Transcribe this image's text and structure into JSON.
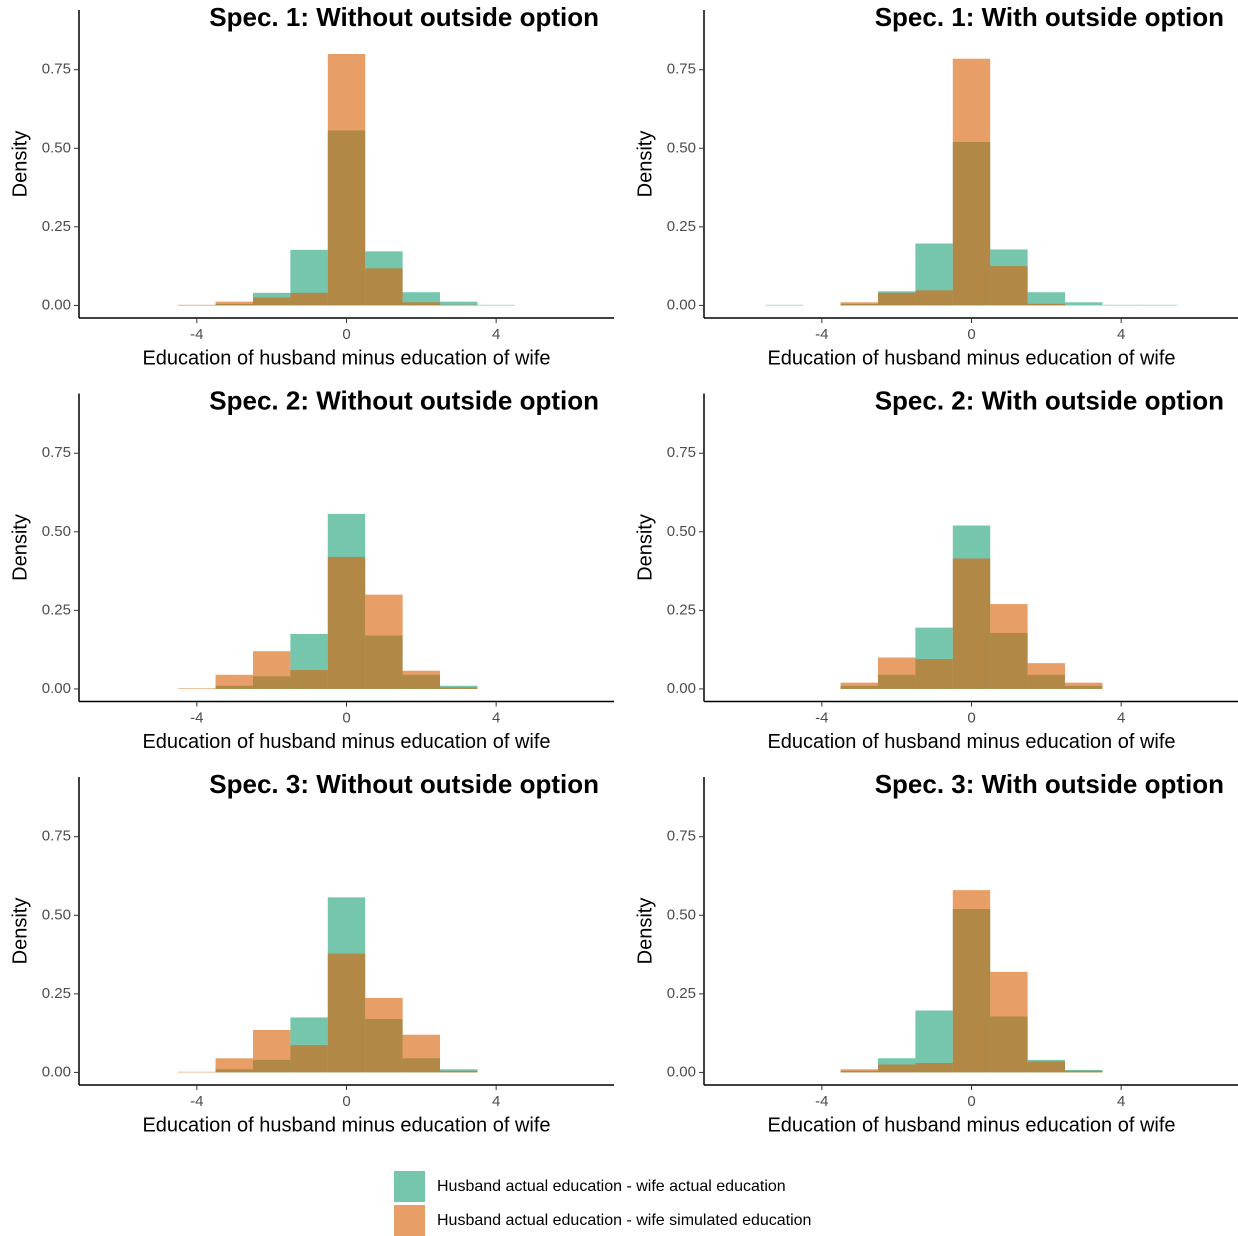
{
  "chart_data": [
    {
      "type": "histogram",
      "title": "Spec. 1: Without outside option",
      "x_label": "Education of husband minus education of wife",
      "y_label": "Density",
      "bins": [
        -4.5,
        -3.5,
        -2.5,
        -1.5,
        -0.5,
        0.5,
        1.5,
        2.5,
        3.5,
        4.5
      ],
      "series": [
        {
          "name": "Husband actual education - wife actual education",
          "color": "#1b9e77",
          "values": [
            0.001,
            0.005,
            0.04,
            0.177,
            0.557,
            0.172,
            0.042,
            0.012,
            0.002
          ]
        },
        {
          "name": "Husband actual education - wife simulated education",
          "color": "#d95f02",
          "values": [
            0.002,
            0.012,
            0.025,
            0.04,
            0.8,
            0.118,
            0.01,
            0.002,
            0
          ]
        }
      ],
      "opacity": 0.6,
      "xlim": [
        -7.15,
        7.15
      ],
      "ylim": [
        -0.04,
        0.94
      ],
      "xticks": [
        -4,
        0,
        4
      ],
      "yticks": [
        {
          "value": 0,
          "label": "0.00"
        },
        0.25,
        {
          "value": 0.5,
          "label": "0.50"
        },
        0.75
      ]
    },
    {
      "type": "histogram",
      "title": "Spec. 1: With outside option",
      "x_label": "Education of husband minus education of wife",
      "y_label": "Density",
      "bins": [
        -5.5,
        -4.5,
        -3.5,
        -2.5,
        -1.5,
        -0.5,
        0.5,
        1.5,
        2.5,
        3.5,
        4.5,
        5.5
      ],
      "series": [
        {
          "name": "Husband actual education - wife actual education",
          "color": "#1b9e77",
          "values": [
            0.002,
            0,
            0.005,
            0.045,
            0.197,
            0.52,
            0.178,
            0.042,
            0.01,
            0.002,
            0.002
          ]
        },
        {
          "name": "Husband actual education - wife simulated education",
          "color": "#d95f02",
          "values": [
            0,
            0,
            0.01,
            0.04,
            0.048,
            0.785,
            0.125,
            0.005,
            0,
            0,
            0
          ]
        }
      ],
      "opacity": 0.6,
      "xlim": [
        -7.15,
        7.15
      ],
      "ylim": [
        -0.04,
        0.94
      ],
      "xticks": [
        -4,
        0,
        4
      ],
      "yticks": [
        {
          "value": 0,
          "label": "0.00"
        },
        0.25,
        {
          "value": 0.5,
          "label": "0.50"
        },
        0.75
      ]
    },
    {
      "type": "histogram",
      "title": "Spec. 2: Without outside option",
      "x_label": "Education of husband minus education of wife",
      "y_label": "Density",
      "bins": [
        -4.5,
        -3.5,
        -2.5,
        -1.5,
        -0.5,
        0.5,
        1.5,
        2.5,
        3.5
      ],
      "series": [
        {
          "name": "Husband actual education - wife actual education",
          "color": "#1b9e77",
          "values": [
            0,
            0.01,
            0.04,
            0.175,
            0.557,
            0.17,
            0.045,
            0.01
          ]
        },
        {
          "name": "Husband actual education - wife simulated education",
          "color": "#d95f02",
          "values": [
            0.002,
            0.045,
            0.12,
            0.06,
            0.42,
            0.3,
            0.058,
            0.005
          ]
        }
      ],
      "opacity": 0.6,
      "xlim": [
        -7.15,
        7.15
      ],
      "ylim": [
        -0.04,
        0.94
      ],
      "xticks": [
        -4,
        0,
        4
      ],
      "yticks": [
        {
          "value": 0,
          "label": "0.00"
        },
        0.25,
        {
          "value": 0.5,
          "label": "0.50"
        },
        0.75
      ]
    },
    {
      "type": "histogram",
      "title": "Spec. 2: With outside option",
      "x_label": "Education of husband minus education of wife",
      "y_label": "Density",
      "bins": [
        -3.5,
        -2.5,
        -1.5,
        -0.5,
        0.5,
        1.5,
        2.5,
        3.5
      ],
      "series": [
        {
          "name": "Husband actual education - wife actual education",
          "color": "#1b9e77",
          "values": [
            0.01,
            0.045,
            0.195,
            0.52,
            0.178,
            0.045,
            0.01
          ]
        },
        {
          "name": "Husband actual education - wife simulated education",
          "color": "#d95f02",
          "values": [
            0.02,
            0.1,
            0.095,
            0.415,
            0.27,
            0.082,
            0.02
          ]
        }
      ],
      "opacity": 0.6,
      "xlim": [
        -7.15,
        7.15
      ],
      "ylim": [
        -0.04,
        0.94
      ],
      "xticks": [
        -4,
        0,
        4
      ],
      "yticks": [
        {
          "value": 0,
          "label": "0.00"
        },
        0.25,
        {
          "value": 0.5,
          "label": "0.50"
        },
        0.75
      ]
    },
    {
      "type": "histogram",
      "title": "Spec. 3: Without outside option",
      "x_label": "Education of husband minus education of wife",
      "y_label": "Density",
      "bins": [
        -4.5,
        -3.5,
        -2.5,
        -1.5,
        -0.5,
        0.5,
        1.5,
        2.5,
        3.5
      ],
      "series": [
        {
          "name": "Husband actual education - wife actual education",
          "color": "#1b9e77",
          "values": [
            0,
            0.01,
            0.04,
            0.175,
            0.557,
            0.17,
            0.045,
            0.01
          ]
        },
        {
          "name": "Husband actual education - wife simulated education",
          "color": "#d95f02",
          "values": [
            0.002,
            0.045,
            0.135,
            0.087,
            0.378,
            0.237,
            0.12,
            0.005
          ]
        }
      ],
      "opacity": 0.6,
      "xlim": [
        -7.15,
        7.15
      ],
      "ylim": [
        -0.04,
        0.94
      ],
      "xticks": [
        -4,
        0,
        4
      ],
      "yticks": [
        {
          "value": 0,
          "label": "0.00"
        },
        0.25,
        {
          "value": 0.5,
          "label": "0.50"
        },
        0.75
      ]
    },
    {
      "type": "histogram",
      "title": "Spec. 3: With outside option",
      "x_label": "Education of husband minus education of wife",
      "y_label": "Density",
      "bins": [
        -3.5,
        -2.5,
        -1.5,
        -0.5,
        0.5,
        1.5,
        2.5,
        3.5
      ],
      "series": [
        {
          "name": "Husband actual education - wife actual education",
          "color": "#1b9e77",
          "values": [
            0.005,
            0.045,
            0.197,
            0.52,
            0.178,
            0.04,
            0.008
          ]
        },
        {
          "name": "Husband actual education - wife simulated education",
          "color": "#d95f02",
          "values": [
            0.01,
            0.025,
            0.03,
            0.58,
            0.32,
            0.035,
            0.005
          ]
        }
      ],
      "opacity": 0.6,
      "xlim": [
        -7.15,
        7.15
      ],
      "ylim": [
        -0.04,
        0.94
      ],
      "xticks": [
        -4,
        0,
        4
      ],
      "yticks": [
        {
          "value": 0,
          "label": "0.00"
        },
        0.25,
        {
          "value": 0.5,
          "label": "0.50"
        },
        0.75
      ]
    }
  ]
}
